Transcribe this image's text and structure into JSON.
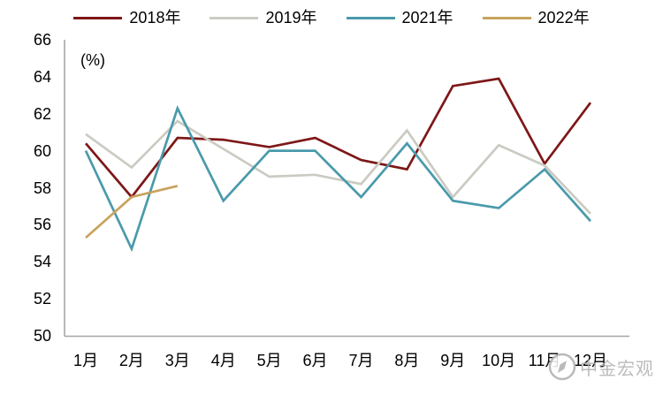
{
  "chart": {
    "percent_label": "(%)",
    "watermark_text": "中金宏观"
  },
  "chart_data": {
    "type": "line",
    "title": "",
    "xlabel": "",
    "ylabel": "(%)",
    "ylim": [
      50,
      66
    ],
    "y_ticks": [
      66,
      64,
      62,
      60,
      58,
      56,
      54,
      52,
      50
    ],
    "x_labels": [
      "1月",
      "2月",
      "3月",
      "4月",
      "5月",
      "6月",
      "7月",
      "8月",
      "9月",
      "10月",
      "11月",
      "12月"
    ],
    "grid": false,
    "legend_position": "top-center",
    "axis_color": "#A6A6A6",
    "series": [
      {
        "name": "2018年",
        "color": "#7E1717",
        "values": [
          60.4,
          57.5,
          60.7,
          60.6,
          60.2,
          60.7,
          59.5,
          59.0,
          63.5,
          63.9,
          59.3,
          62.6
        ]
      },
      {
        "name": "2019年",
        "color": "#CBCBC3",
        "values": [
          60.9,
          59.1,
          61.6,
          60.1,
          58.6,
          58.7,
          58.2,
          61.1,
          57.5,
          60.3,
          59.2,
          56.6
        ]
      },
      {
        "name": "2021年",
        "color": "#4A9AAB",
        "values": [
          60.0,
          54.7,
          62.3,
          57.3,
          60.0,
          60.0,
          57.5,
          60.4,
          57.3,
          56.9,
          59.0,
          56.2
        ]
      },
      {
        "name": "2022年",
        "color": "#C8A35C",
        "values": [
          55.3,
          57.5,
          58.1,
          null,
          null,
          null,
          null,
          null,
          null,
          null,
          null,
          null
        ]
      }
    ]
  }
}
